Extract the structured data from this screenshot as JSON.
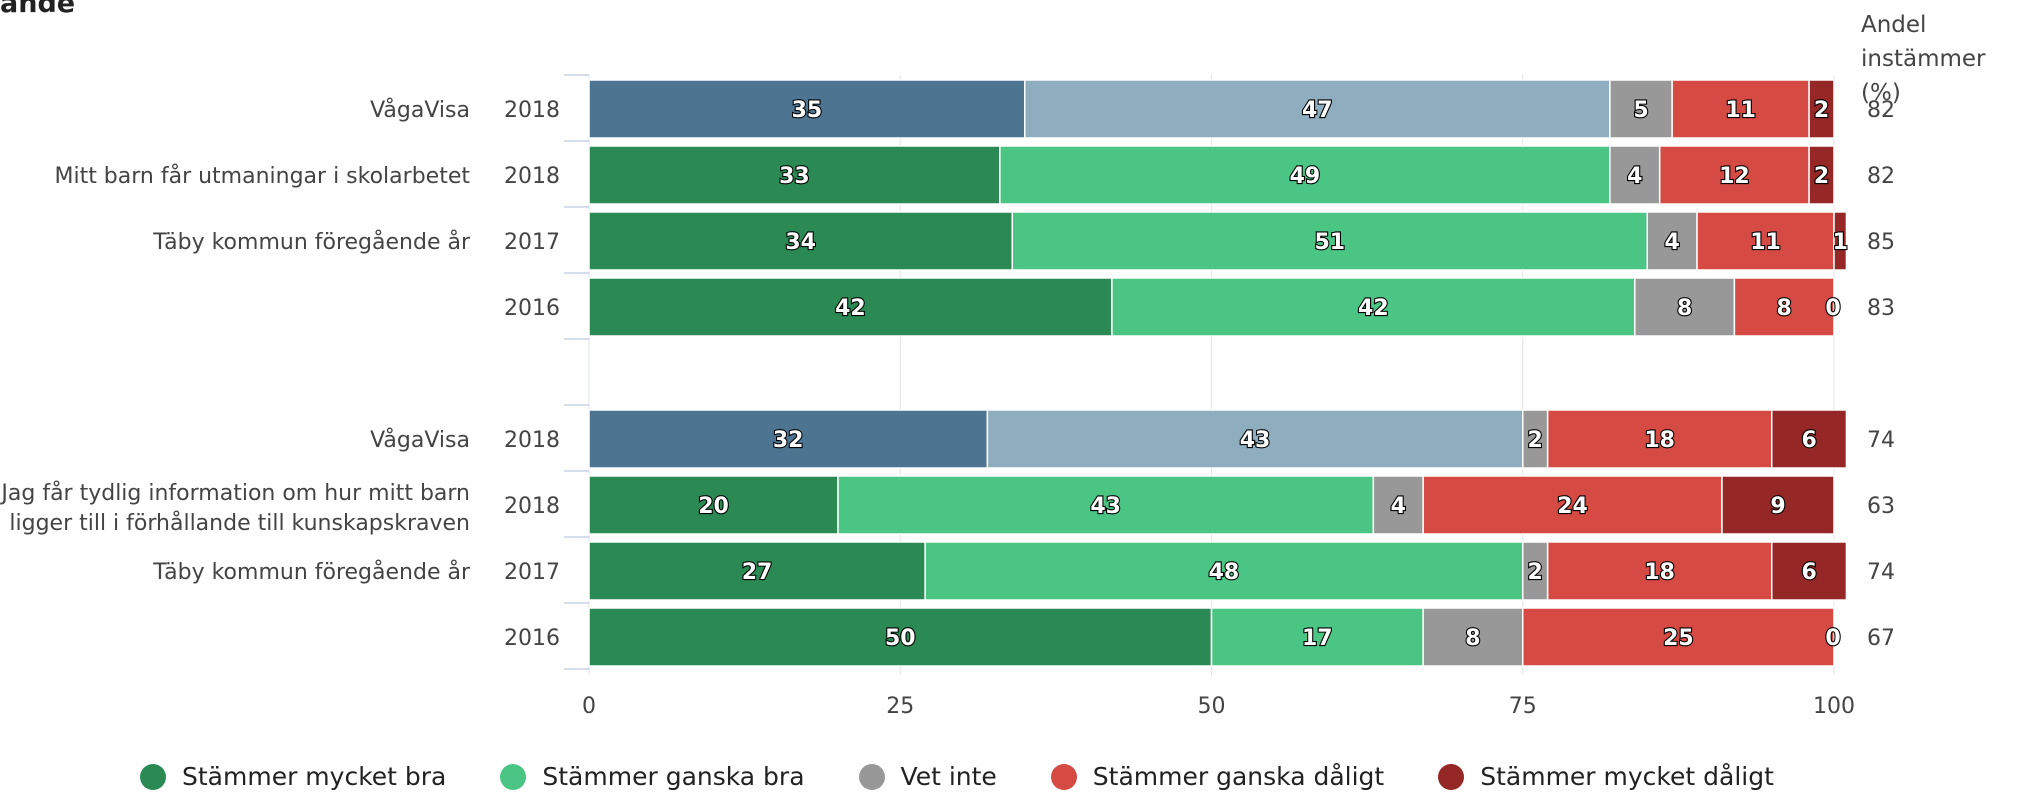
{
  "title": "ande",
  "right_header": [
    "Andel",
    "instämmer (%)"
  ],
  "colors": {
    "vaga_dark": "#4d7490",
    "vaga_light": "#8eadbe",
    "mycket_bra": "#2b8a54",
    "ganska_bra": "#4bc584",
    "vet_inte": "#989898",
    "ganska_daligt": "#d64a44",
    "mycket_daligt": "#952726"
  },
  "legend": [
    {
      "label": "Stämmer mycket bra",
      "color": "#2b8a54"
    },
    {
      "label": "Stämmer ganska bra",
      "color": "#4bc584"
    },
    {
      "label": "Vet inte",
      "color": "#989898"
    },
    {
      "label": "Stämmer ganska dåligt",
      "color": "#d64a44"
    },
    {
      "label": "Stämmer mycket dåligt",
      "color": "#952726"
    }
  ],
  "chart_data": {
    "type": "bar",
    "orientation": "horizontal",
    "stacked": true,
    "xlim": [
      0,
      100
    ],
    "xticks": [
      0,
      25,
      50,
      75,
      100
    ],
    "grid": true,
    "legend_position": "bottom",
    "groups": [
      {
        "question": [
          "Mitt barn får utmaningar i skolarbetet"
        ],
        "rows": [
          {
            "label": "VågaVisa",
            "year": "2018",
            "values": [
              35,
              47,
              5,
              11,
              2
            ],
            "share": "82",
            "palette": "vaga"
          },
          {
            "label": "",
            "year": "2018",
            "values": [
              33,
              49,
              4,
              12,
              2
            ],
            "share": "82",
            "palette": "std"
          },
          {
            "label": "Täby kommun föregående år",
            "year": "2017",
            "values": [
              34,
              51,
              4,
              11,
              1
            ],
            "share": "85",
            "palette": "std"
          },
          {
            "label": "",
            "year": "2016",
            "values": [
              42,
              42,
              8,
              8,
              0
            ],
            "share": "83",
            "palette": "std"
          }
        ]
      },
      {
        "question": [
          "Jag får tydlig information om hur mitt barn",
          "ligger till i förhållande till kunskapskraven"
        ],
        "rows": [
          {
            "label": "VågaVisa",
            "year": "2018",
            "values": [
              32,
              43,
              2,
              18,
              6
            ],
            "share": "74",
            "palette": "vaga"
          },
          {
            "label": "",
            "year": "2018",
            "values": [
              20,
              43,
              4,
              24,
              9
            ],
            "share": "63",
            "palette": "std"
          },
          {
            "label": "Täby kommun föregående år",
            "year": "2017",
            "values": [
              27,
              48,
              2,
              18,
              6
            ],
            "share": "74",
            "palette": "std"
          },
          {
            "label": "",
            "year": "2016",
            "values": [
              50,
              17,
              8,
              25,
              0
            ],
            "share": "67",
            "palette": "std"
          }
        ]
      }
    ]
  }
}
